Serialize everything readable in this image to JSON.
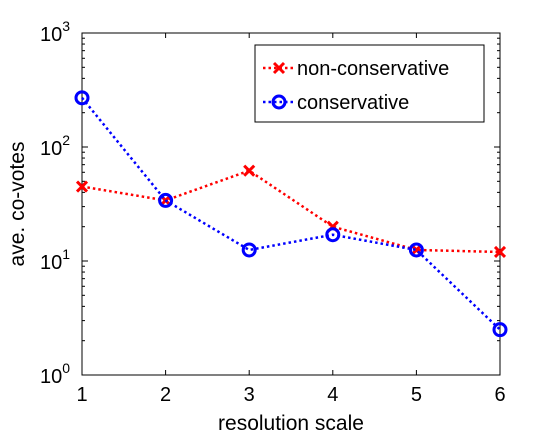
{
  "chart_data": {
    "type": "line",
    "title": "",
    "xlabel": "resolution scale",
    "ylabel": "ave. co-votes",
    "x": [
      1,
      2,
      3,
      4,
      5,
      6
    ],
    "xlim": [
      1,
      6
    ],
    "ylim": [
      1,
      1000
    ],
    "yscale": "log",
    "x_ticks": [
      1,
      2,
      3,
      4,
      5,
      6
    ],
    "y_ticks": [
      1,
      10,
      100,
      1000
    ],
    "grid": false,
    "legend_position": "top-right",
    "series": [
      {
        "name": "non-conservative",
        "values": [
          45,
          34,
          62,
          20,
          12.5,
          12
        ],
        "color": "#ff0000",
        "marker": "x",
        "line_style": "dotted"
      },
      {
        "name": "conservative",
        "values": [
          270,
          34,
          12.5,
          17,
          12.5,
          2.5
        ],
        "color": "#0000ff",
        "marker": "circle",
        "line_style": "dotted"
      }
    ]
  }
}
